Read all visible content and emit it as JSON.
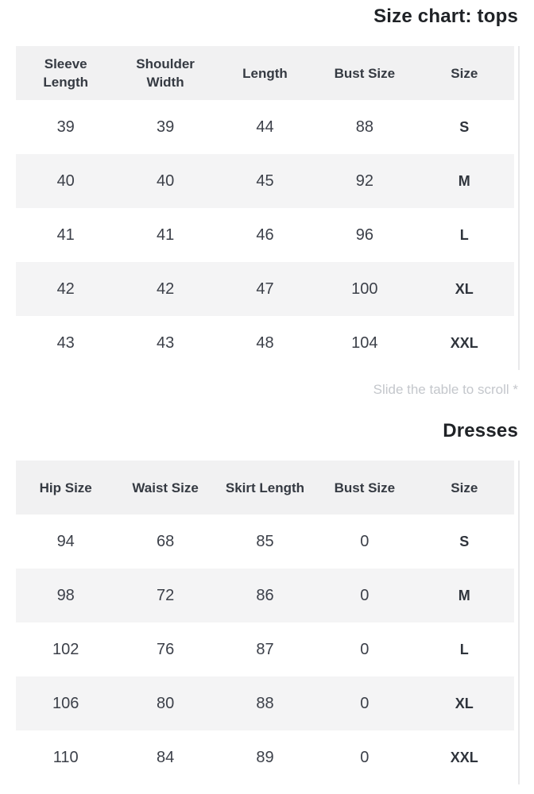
{
  "colors": {
    "page_bg": "#ffffff",
    "header_bg": "#f1f1f2",
    "row_alt_bg": "#f4f4f5",
    "cell_text": "#3c4049",
    "title_text": "#1f2226",
    "muted_text": "#c4c7cc",
    "table_edge_border": "#e9e9eb"
  },
  "tops": {
    "title": "Size chart: tops",
    "scroll_note": "Slide the table to scroll *",
    "columns": [
      "Sleeve\nLength",
      "Shoulder\nWidth",
      "Length",
      "Bust Size",
      "Size"
    ],
    "rows": [
      [
        "39",
        "39",
        "44",
        "88",
        "S"
      ],
      [
        "40",
        "40",
        "45",
        "92",
        "M"
      ],
      [
        "41",
        "41",
        "46",
        "96",
        "L"
      ],
      [
        "42",
        "42",
        "47",
        "100",
        "XL"
      ],
      [
        "43",
        "43",
        "48",
        "104",
        "XXL"
      ]
    ]
  },
  "dresses": {
    "title": "Dresses",
    "columns": [
      "Hip Size",
      "Waist Size",
      "Skirt Length",
      "Bust Size",
      "Size"
    ],
    "rows": [
      [
        "94",
        "68",
        "85",
        "0",
        "S"
      ],
      [
        "98",
        "72",
        "86",
        "0",
        "M"
      ],
      [
        "102",
        "76",
        "87",
        "0",
        "L"
      ],
      [
        "106",
        "80",
        "88",
        "0",
        "XL"
      ],
      [
        "110",
        "84",
        "89",
        "0",
        "XXL"
      ]
    ]
  }
}
